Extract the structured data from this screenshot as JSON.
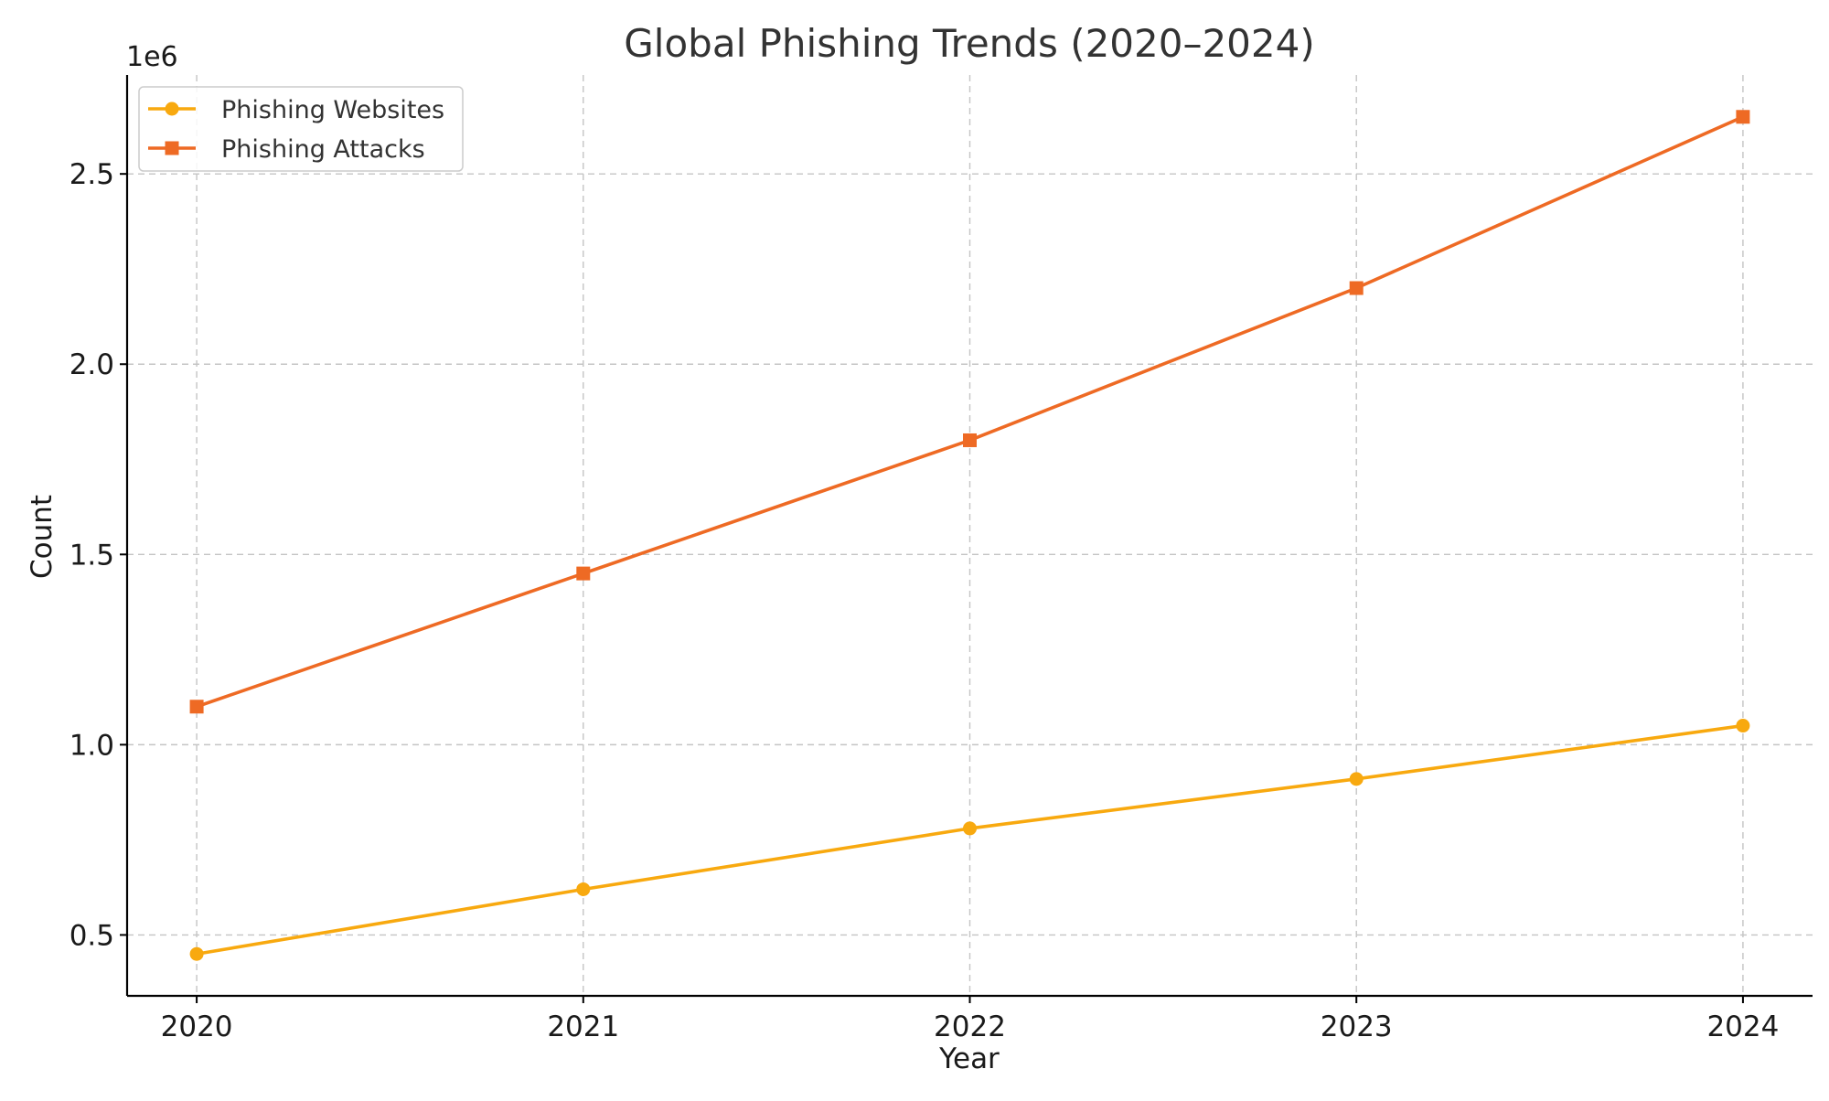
{
  "chart_data": {
    "type": "line",
    "title": "Global Phishing Trends (2020–2024)",
    "xlabel": "Year",
    "ylabel": "Count",
    "y_offset_label": "1e6",
    "x": [
      2020,
      2021,
      2022,
      2023,
      2024
    ],
    "x_tick_labels": [
      "2020",
      "2021",
      "2022",
      "2023",
      "2024"
    ],
    "ylim": [
      340000,
      2760000
    ],
    "y_ticks": [
      500000,
      1000000,
      1500000,
      2000000,
      2500000
    ],
    "y_tick_labels": [
      "0.5",
      "1.0",
      "1.5",
      "2.0",
      "2.5"
    ],
    "grid": true,
    "legend_position": "top-left",
    "series": [
      {
        "name": "Phishing Websites",
        "values": [
          450000,
          620000,
          780000,
          910000,
          1050000
        ],
        "color": "#f8a90f",
        "marker": "circle"
      },
      {
        "name": "Phishing Attacks",
        "values": [
          1100000,
          1450000,
          1800000,
          2200000,
          2650000
        ],
        "color": "#ee6a24",
        "marker": "square"
      }
    ]
  }
}
